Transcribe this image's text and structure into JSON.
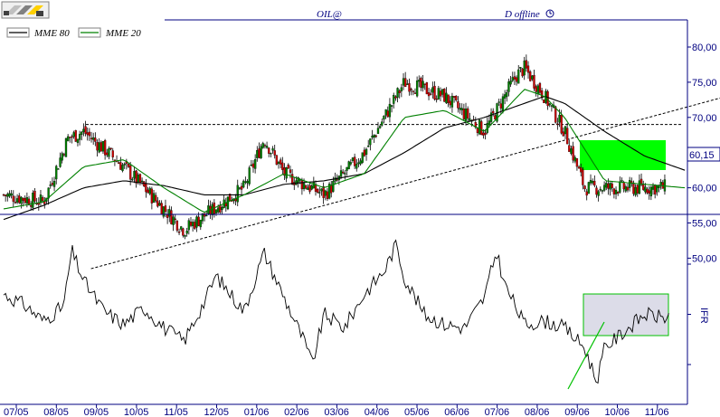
{
  "header": {
    "symbol": "OIL@",
    "mode": "D offline",
    "clock_icon": "clock-icon",
    "logo_icon": "app-logo-icon"
  },
  "legend": {
    "mme80_label": "MME 80",
    "mme20_label": "MME 20",
    "mme80_color": "#000000",
    "mme20_color": "#008000"
  },
  "price_panel": {
    "last_price": "60,15",
    "y_ticks": [
      "80,00",
      "75,00",
      "70,00",
      "65,00",
      "60,00",
      "55,00",
      "50,00"
    ],
    "y_tick_values": [
      80,
      75,
      70,
      65,
      60,
      55,
      50
    ],
    "up_color": "#008000",
    "down_color": "#cc0000",
    "highlight_color": "#00ff00"
  },
  "rsi_panel": {
    "label": "IFR",
    "box_fill": "#dcdce8"
  },
  "x_axis": {
    "labels": [
      "07/05",
      "08/05",
      "09/05",
      "10/05",
      "11/05",
      "12/05",
      "01/06",
      "02/06",
      "03/06",
      "04/06",
      "05/06",
      "06/06",
      "07/06",
      "08/06",
      "09/06",
      "10/06",
      "11/06"
    ]
  },
  "chart_data": [
    {
      "type": "candlestick",
      "title": "OIL@",
      "series": [
        {
          "name": "MME 80"
        },
        {
          "name": "MME 20"
        }
      ],
      "x_labels": [
        "07/05",
        "08/05",
        "09/05",
        "10/05",
        "11/05",
        "12/05",
        "01/06",
        "02/06",
        "03/06",
        "04/06",
        "05/06",
        "06/06",
        "07/06",
        "08/06",
        "09/06",
        "10/06",
        "11/06"
      ],
      "ylim": [
        48,
        83
      ],
      "y_ticks": [
        50,
        55,
        60,
        65,
        70,
        75,
        80
      ],
      "close_path": {
        "x": [
          0,
          1,
          1.6,
          2,
          3,
          4,
          4.5,
          5,
          6,
          6.5,
          7,
          8,
          9,
          10,
          11,
          12,
          12.8,
          13,
          13.5,
          14,
          14.5,
          15,
          16,
          17
        ],
        "y": [
          59,
          58,
          67,
          68,
          63,
          57,
          54,
          56,
          60,
          67,
          62,
          59,
          65,
          75,
          73,
          68,
          76,
          77,
          73,
          68,
          60,
          60,
          60,
          60.15
        ]
      },
      "mme20": {
        "x": [
          0,
          1,
          2,
          3,
          4,
          5,
          6,
          7,
          8,
          9,
          10,
          11,
          12,
          13,
          13.5,
          14,
          15,
          17
        ],
        "y": [
          57,
          58,
          63,
          64,
          60,
          56.5,
          59,
          62,
          60,
          62,
          70,
          71,
          68,
          74,
          73,
          70,
          61,
          60
        ]
      },
      "mme80": {
        "x": [
          0,
          1,
          2,
          3,
          4,
          5,
          6,
          7,
          8,
          9,
          10,
          11,
          12,
          13,
          13.5,
          14,
          15,
          16,
          17
        ],
        "y": [
          55.5,
          57.5,
          60,
          61,
          60.3,
          59,
          59,
          60.5,
          61,
          62,
          65,
          68.5,
          70,
          72,
          73,
          72,
          68,
          64.5,
          62.5
        ]
      },
      "last_value": 60.15,
      "horizontal_line": 69,
      "trendline": {
        "x": [
          2,
          17.5
        ],
        "y": [
          48.5,
          73
        ]
      }
    },
    {
      "type": "line",
      "title": "",
      "ylabel": "IFR",
      "x_labels": [
        "07/05",
        "08/05",
        "09/05",
        "10/05",
        "11/05",
        "12/05",
        "01/06",
        "02/06",
        "03/06",
        "04/06",
        "05/06",
        "06/06",
        "07/06",
        "08/06",
        "09/06",
        "10/06",
        "11/06"
      ],
      "ylim": [
        0,
        100
      ],
      "series": [
        {
          "x": [
            0,
            0.5,
            1,
            1.5,
            1.7,
            2,
            2.5,
            3,
            3.5,
            4,
            4.5,
            5,
            5.3,
            6,
            6.5,
            7,
            7.5,
            7.7,
            8,
            8.5,
            9,
            9.5,
            9.8,
            10,
            10.5,
            11,
            11.5,
            12,
            12.3,
            12.5,
            13,
            13.5,
            14,
            14.5,
            14.8,
            15,
            15.5,
            16,
            16.5,
            17
          ],
          "y": [
            62,
            56,
            46,
            55,
            88,
            70,
            52,
            44,
            54,
            42,
            34,
            57,
            73,
            52,
            87,
            60,
            34,
            20,
            50,
            42,
            62,
            76,
            92,
            72,
            50,
            44,
            42,
            60,
            88,
            68,
            44,
            46,
            42,
            30,
            10,
            30,
            40,
            50,
            48,
            56
          ]
        }
      ]
    }
  ]
}
